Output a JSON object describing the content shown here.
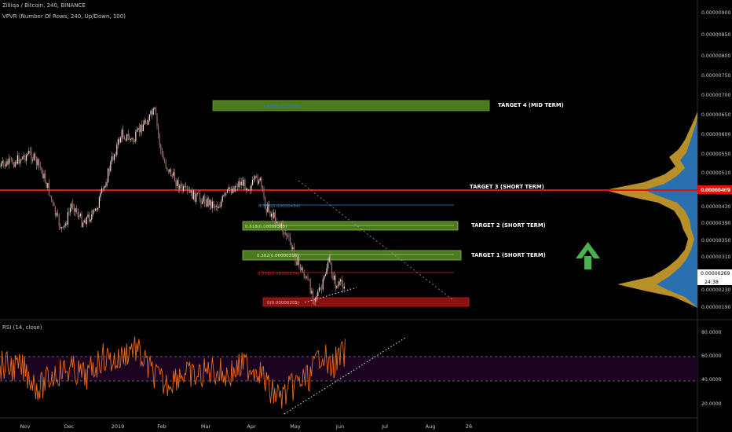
{
  "header": {
    "symbol_line": "Zilliqa / Bitcoin, 240, BINANCE",
    "indicator_line": "VPVR (Number Of Rows, 240, Up/Down, 100)",
    "rsi_label": "RSI (14, close)"
  },
  "colors": {
    "background": "#000000",
    "candle": "#e2b9b4",
    "target_box": "#4a7a1c",
    "target3_line": "#e0120c",
    "fib_blue": "#2b80c8",
    "fib_red": "#c42620",
    "volume_up": "#2a6fb0",
    "volume_down": "#b8902a",
    "rsi_line": "#e86a1a",
    "rsi_band": "#1a0420",
    "arrow": "#4caf50"
  },
  "price_axis": {
    "ticks": [
      "0.00000900",
      "0.00000850",
      "0.00000800",
      "0.00000750",
      "0.00000700",
      "0.00000650",
      "0.00000600",
      "0.00000550",
      "0.00000510",
      "0.00000470",
      "0.00000430",
      "0.00000390",
      "0.00000350",
      "0.00000310",
      "0.00000269",
      "0.00000230",
      "0.00000190"
    ],
    "current_price_label": "0.00000469",
    "last_price_label": "0.00000269",
    "countdown_label": "24:38"
  },
  "rsi_axis": {
    "ticks": [
      "80.0000",
      "60.0000",
      "40.0000",
      "20.0000"
    ]
  },
  "time_axis": {
    "labels": [
      "Nov",
      "Dec",
      "2019",
      "Feb",
      "Mar",
      "Apr",
      "May",
      "Jun",
      "Jul",
      "Aug",
      "26"
    ]
  },
  "annotations": {
    "target4": "TARGET 4 (MID TERM)",
    "target3": "TARGET 3 (SHORT TERM)",
    "target2": "TARGET 2 (SHORT TERM)",
    "target1": "TARGET 1 (SHORT TERM)",
    "fib_0786": "0.786(0.00000434)",
    "fib_0618": "0.618(0.00000385)",
    "fib_0382": "0.382(0.00000316)",
    "fib_0236": "0.236(0.00000274)",
    "fib_0": "0(0.00000205)",
    "fib_target4": "1.618(0.00000670)"
  },
  "chart_data": [
    {
      "type": "candlestick",
      "title": "Zilliqa / Bitcoin, 240, BINANCE",
      "x_unit": "month (time axis labels)",
      "y_unit": "BTC",
      "ylim": [
        1.8e-06,
        9.3e-06
      ],
      "x_labels": [
        "Nov",
        "Dec",
        "2019",
        "Feb",
        "Mar",
        "Apr",
        "May",
        "Jun",
        "Jul",
        "Aug",
        "26"
      ],
      "approx_price_path": [
        {
          "x": "Oct",
          "y": 5.2e-06
        },
        {
          "x": "Nov",
          "y": 5.6e-06
        },
        {
          "x": "Nov",
          "y": 4e-06
        },
        {
          "x": "Dec",
          "y": 4.1e-06
        },
        {
          "x": "2019",
          "y": 5.9e-06
        },
        {
          "x": "Jan",
          "y": 6.5e-06
        },
        {
          "x": "Feb",
          "y": 5.2e-06
        },
        {
          "x": "Feb",
          "y": 4.7e-06
        },
        {
          "x": "Mar",
          "y": 4.4e-06
        },
        {
          "x": "Apr",
          "y": 4.8e-06
        },
        {
          "x": "Apr",
          "y": 4.2e-06
        },
        {
          "x": "May",
          "y": 3e-06
        },
        {
          "x": "May",
          "y": 2.05e-06
        },
        {
          "x": "May",
          "y": 3.1e-06
        },
        {
          "x": "Jun",
          "y": 2.69e-06
        }
      ],
      "levels": [
        {
          "name": "TARGET 4 (MID TERM)",
          "value": 6.7e-06
        },
        {
          "name": "TARGET 3 (SHORT TERM)",
          "value": 4.69e-06
        },
        {
          "name": "TARGET 2 (SHORT TERM)",
          "value": 3.85e-06
        },
        {
          "name": "TARGET 1 (SHORT TERM)",
          "value": 3.16e-06
        },
        {
          "name": "0.786",
          "value": 4.34e-06
        },
        {
          "name": "0.236",
          "value": 2.74e-06
        },
        {
          "name": "0",
          "value": 2.05e-06
        }
      ],
      "indicator": "VPVR (Number Of Rows, 240, Up/Down, 100)"
    },
    {
      "type": "line",
      "title": "RSI (14, close)",
      "ylim": [
        10,
        90
      ],
      "band": [
        40,
        60
      ],
      "yticks": [
        80,
        60,
        40,
        20
      ],
      "approx_values_by_month": [
        {
          "x": "Nov",
          "y": 50
        },
        {
          "x": "Dec",
          "y": 55
        },
        {
          "x": "2019",
          "y": 62
        },
        {
          "x": "Feb",
          "y": 45
        },
        {
          "x": "Mar",
          "y": 52
        },
        {
          "x": "Apr",
          "y": 50
        },
        {
          "x": "May",
          "y": 30
        },
        {
          "x": "May",
          "y": 65
        },
        {
          "x": "Jun",
          "y": 60
        }
      ]
    }
  ]
}
